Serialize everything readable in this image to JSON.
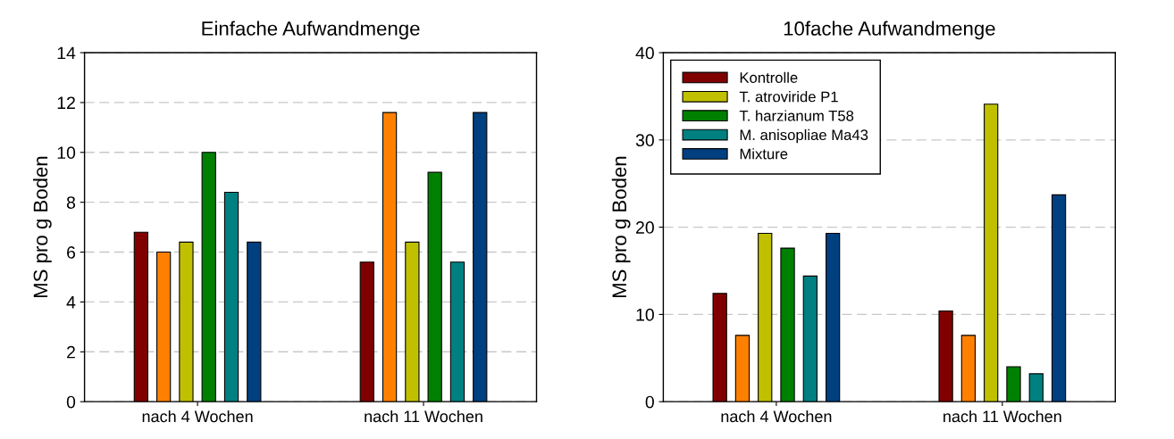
{
  "chart_data": [
    {
      "type": "bar",
      "title": "Einfache Aufwandmenge",
      "ylabel": "MS pro g Boden",
      "categories": [
        "nach 4 Wochen",
        "nach 11 Wochen"
      ],
      "ylim": [
        0,
        14
      ],
      "yticks": [
        0,
        2,
        4,
        6,
        8,
        10,
        12,
        14
      ],
      "grid": "y",
      "series": [
        {
          "color": "#800000",
          "values": [
            6.8,
            5.6
          ]
        },
        {
          "color": "#ff8000",
          "values": [
            6.0,
            11.6
          ]
        },
        {
          "color": "#c0c000",
          "values": [
            6.4,
            6.4
          ]
        },
        {
          "color": "#008000",
          "values": [
            10.0,
            9.2
          ]
        },
        {
          "color": "#008080",
          "values": [
            8.4,
            5.6
          ]
        },
        {
          "color": "#004080",
          "values": [
            6.4,
            11.6
          ]
        }
      ]
    },
    {
      "type": "bar",
      "title": "10fache Aufwandmenge",
      "ylabel": "MS pro g Boden",
      "categories": [
        "nach 4 Wochen",
        "nach 11 Wochen"
      ],
      "ylim": [
        0,
        40
      ],
      "yticks": [
        0,
        10,
        20,
        30,
        40
      ],
      "grid": "y",
      "legend": "top left",
      "series": [
        {
          "name": "Kontrolle",
          "color": "#800000",
          "values": [
            12.4,
            10.4
          ]
        },
        {
          "color": "#ff8000",
          "values": [
            7.6,
            7.6
          ]
        },
        {
          "name": "T. atroviride P1",
          "color": "#c0c000",
          "values": [
            19.3,
            34.1
          ]
        },
        {
          "name": "T. harzianum T58",
          "color": "#008000",
          "values": [
            17.6,
            4.0
          ]
        },
        {
          "name": "M. anisopliae Ma43",
          "color": "#008080",
          "values": [
            14.4,
            3.2
          ]
        },
        {
          "name": "Mixture",
          "color": "#004080",
          "values": [
            19.3,
            23.7
          ]
        }
      ]
    }
  ]
}
